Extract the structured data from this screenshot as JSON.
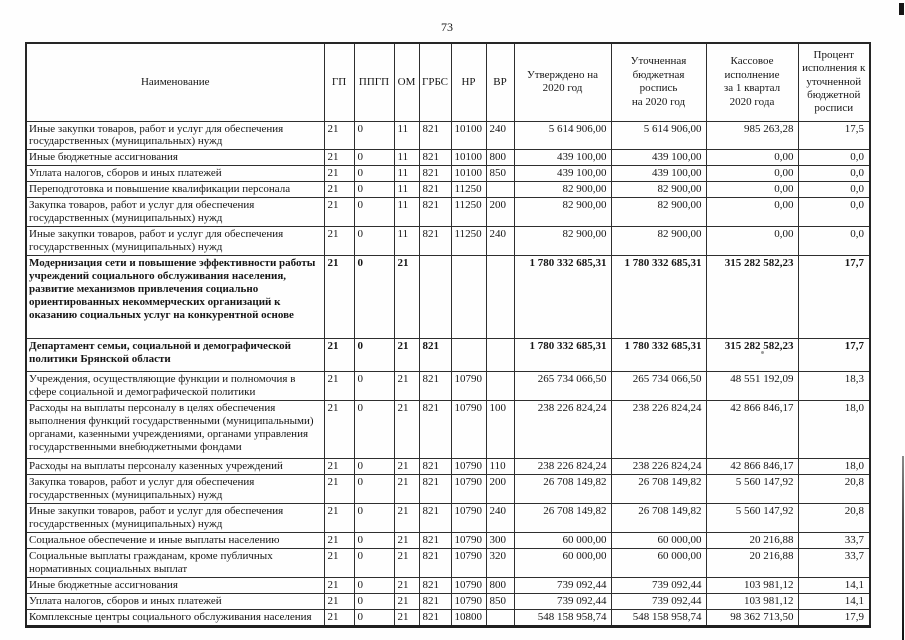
{
  "page": {
    "number": "73"
  },
  "table": {
    "headers": [
      "Наименование",
      "ГП",
      "ППГП",
      "ОМ",
      "ГРБС",
      "НР",
      "ВР",
      "Утверждено на\n2020 год",
      "Уточненная\nбюджетная\nроспись\nна 2020 год",
      "Кассовое\nисполнение\nза 1 квартал\n2020 года",
      "Процент\nисполнения к\nуточненной\nбюджетной\nросписи"
    ],
    "rows": [
      {
        "bold": false,
        "cells": [
          "Иные закупки товаров, работ и услуг для обеспечения государственных (муниципальных) нужд",
          "21",
          "0",
          "11",
          "821",
          "10100",
          "240",
          "5 614 906,00",
          "5 614 906,00",
          "985 263,28",
          "17,5"
        ]
      },
      {
        "bold": false,
        "cells": [
          "Иные бюджетные ассигнования",
          "21",
          "0",
          "11",
          "821",
          "10100",
          "800",
          "439 100,00",
          "439 100,00",
          "0,00",
          "0,0"
        ]
      },
      {
        "bold": false,
        "cells": [
          "Уплата налогов, сборов и иных платежей",
          "21",
          "0",
          "11",
          "821",
          "10100",
          "850",
          "439 100,00",
          "439 100,00",
          "0,00",
          "0,0"
        ]
      },
      {
        "bold": false,
        "cells": [
          "Переподготовка и повышение квалификации персонала",
          "21",
          "0",
          "11",
          "821",
          "11250",
          "",
          "82 900,00",
          "82 900,00",
          "0,00",
          "0,0"
        ]
      },
      {
        "bold": false,
        "cells": [
          "Закупка товаров, работ и услуг для обеспечения государственных (муниципальных) нужд",
          "21",
          "0",
          "11",
          "821",
          "11250",
          "200",
          "82 900,00",
          "82 900,00",
          "0,00",
          "0,0"
        ]
      },
      {
        "bold": false,
        "cells": [
          "Иные закупки товаров, работ и услуг для обеспечения государственных (муниципальных) нужд",
          "21",
          "0",
          "11",
          "821",
          "11250",
          "240",
          "82 900,00",
          "82 900,00",
          "0,00",
          "0,0"
        ]
      },
      {
        "bold": true,
        "cells": [
          "Модернизация сети и повышение эффективности работы учреждений социального обслуживания населения, развитие механизмов привлечения социально ориентированных некоммерческих организаций к оказанию социальных услуг на конкурентной основе",
          "21",
          "0",
          "21",
          "",
          "",
          "",
          "1 780 332 685,31",
          "1 780 332 685,31",
          "315 282 582,23",
          "17,7"
        ]
      },
      {
        "bold": true,
        "cells": [
          "Департамент семьи, социальной и демографической политики Брянской области",
          "21",
          "0",
          "21",
          "821",
          "",
          "",
          "1 780 332 685,31",
          "1 780 332 685,31",
          "315 282 582,23",
          "17,7"
        ]
      },
      {
        "bold": false,
        "cells": [
          "Учреждения, осуществляющие функции и полномочия в сфере социальной и демографической политики",
          "21",
          "0",
          "21",
          "821",
          "10790",
          "",
          "265 734 066,50",
          "265 734 066,50",
          "48 551 192,09",
          "18,3"
        ]
      },
      {
        "bold": false,
        "cells": [
          "Расходы на выплаты персоналу в целях обеспечения выполнения функций государственными (муниципальными) органами, казенными учреждениями, органами управления государственными внебюджетными фондами",
          "21",
          "0",
          "21",
          "821",
          "10790",
          "100",
          "238 226 824,24",
          "238 226 824,24",
          "42 866 846,17",
          "18,0"
        ]
      },
      {
        "bold": false,
        "cells": [
          "Расходы на выплаты персоналу казенных учреждений",
          "21",
          "0",
          "21",
          "821",
          "10790",
          "110",
          "238 226 824,24",
          "238 226 824,24",
          "42 866 846,17",
          "18,0"
        ]
      },
      {
        "bold": false,
        "cells": [
          "Закупка товаров, работ и услуг для обеспечения государственных (муниципальных) нужд",
          "21",
          "0",
          "21",
          "821",
          "10790",
          "200",
          "26 708 149,82",
          "26 708 149,82",
          "5 560 147,92",
          "20,8"
        ]
      },
      {
        "bold": false,
        "cells": [
          "Иные закупки товаров, работ и услуг для обеспечения государственных (муниципальных) нужд",
          "21",
          "0",
          "21",
          "821",
          "10790",
          "240",
          "26 708 149,82",
          "26 708 149,82",
          "5 560 147,92",
          "20,8"
        ]
      },
      {
        "bold": false,
        "cells": [
          "Социальное обеспечение и иные выплаты населению",
          "21",
          "0",
          "21",
          "821",
          "10790",
          "300",
          "60 000,00",
          "60 000,00",
          "20 216,88",
          "33,7"
        ]
      },
      {
        "bold": false,
        "cells": [
          "Социальные выплаты гражданам, кроме публичных нормативных социальных выплат",
          "21",
          "0",
          "21",
          "821",
          "10790",
          "320",
          "60 000,00",
          "60 000,00",
          "20 216,88",
          "33,7"
        ]
      },
      {
        "bold": false,
        "cells": [
          "Иные бюджетные ассигнования",
          "21",
          "0",
          "21",
          "821",
          "10790",
          "800",
          "739 092,44",
          "739 092,44",
          "103 981,12",
          "14,1"
        ]
      },
      {
        "bold": false,
        "cells": [
          "Уплата налогов, сборов и иных платежей",
          "21",
          "0",
          "21",
          "821",
          "10790",
          "850",
          "739 092,44",
          "739 092,44",
          "103 981,12",
          "14,1"
        ]
      },
      {
        "bold": false,
        "cells": [
          "Комплексные центры социального обслуживания населения",
          "21",
          "0",
          "21",
          "821",
          "10800",
          "",
          "548 158 958,74",
          "548 158 958,74",
          "98 362 713,50",
          "17,9"
        ]
      }
    ]
  }
}
